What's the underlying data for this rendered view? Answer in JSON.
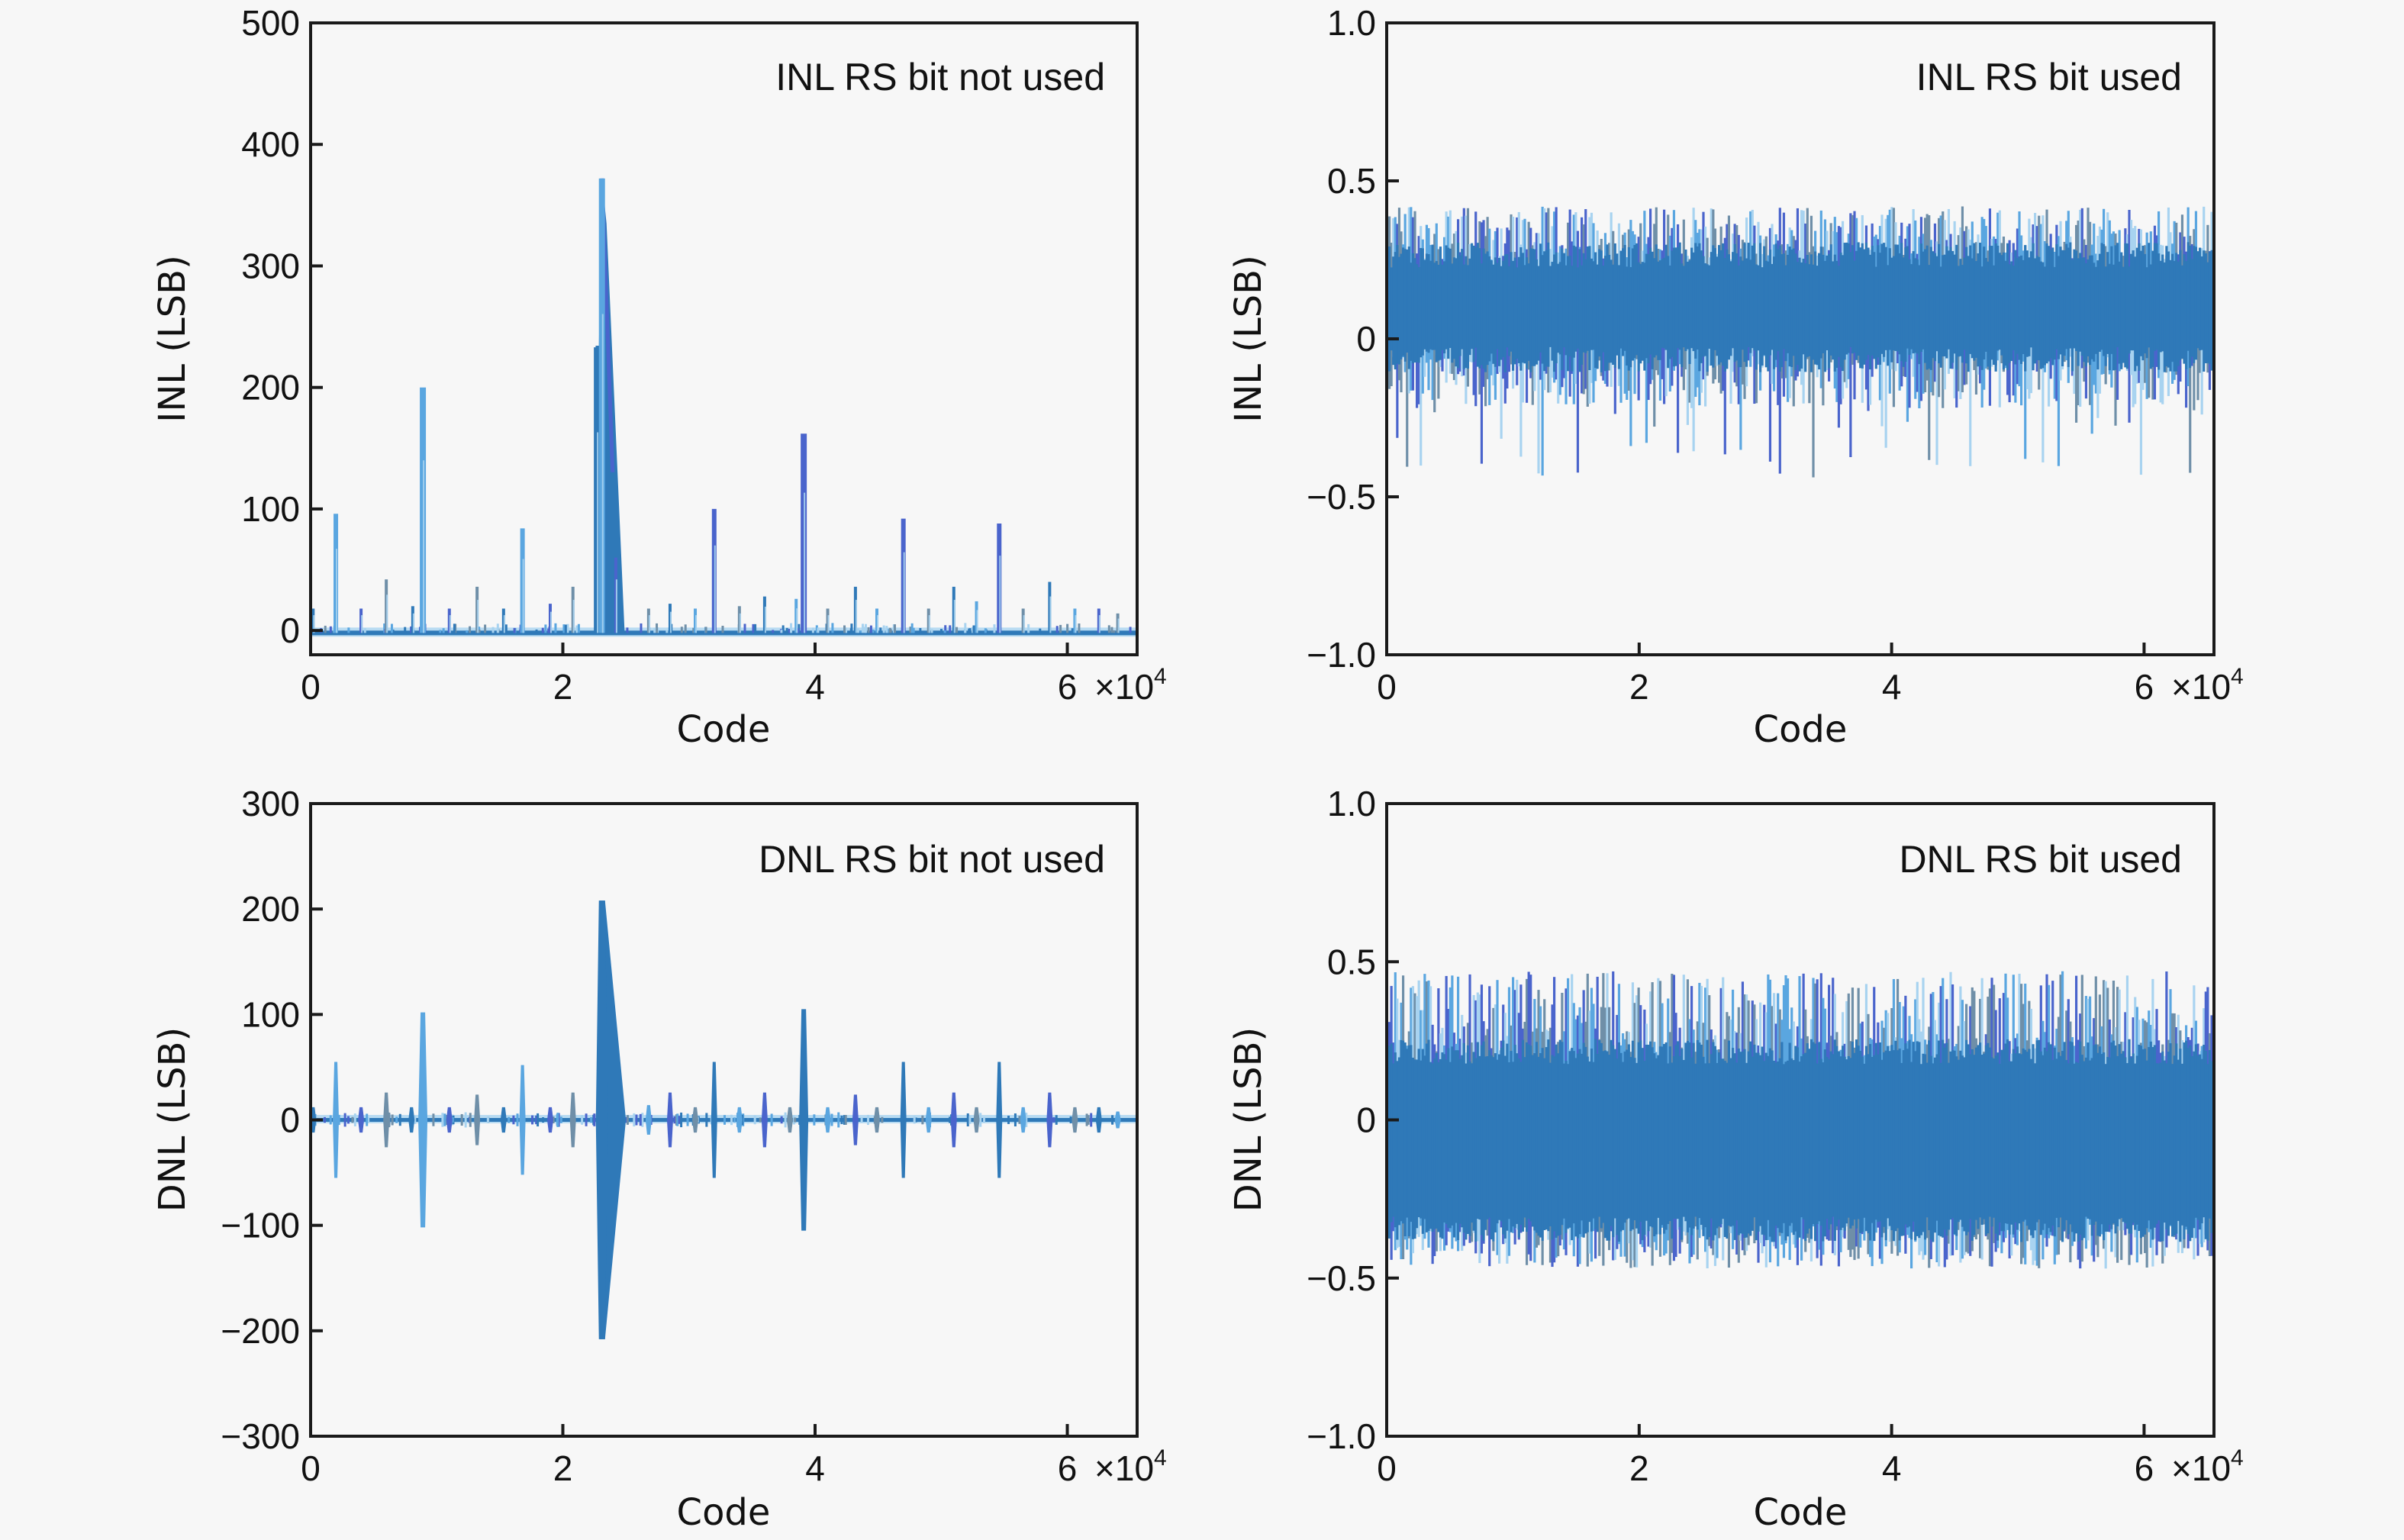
{
  "chart_data": [
    {
      "id": "inl_not_used",
      "type": "line",
      "annotation": "INL RS bit not used",
      "xlabel": "Code",
      "ylabel": "INL (LSB)",
      "xlim": [
        0,
        65536
      ],
      "ylim": [
        -20,
        500
      ],
      "xticks": [
        0,
        20000,
        40000,
        60000
      ],
      "xtick_labels": [
        "0",
        "2",
        "4",
        "6"
      ],
      "x_multiplier_label": "×10",
      "x_multiplier_exp": "4",
      "yticks": [
        0,
        100,
        200,
        300,
        400,
        500
      ],
      "ytick_labels": [
        "0",
        "100",
        "200",
        "300",
        "400",
        "500"
      ],
      "baseline": -2,
      "spikes": [
        {
          "x": 200,
          "y": 18
        },
        {
          "x": 2000,
          "y": 96
        },
        {
          "x": 4000,
          "y": 18
        },
        {
          "x": 6000,
          "y": 42
        },
        {
          "x": 8100,
          "y": 20
        },
        {
          "x": 8900,
          "y": 200
        },
        {
          "x": 11000,
          "y": 18
        },
        {
          "x": 13200,
          "y": 36
        },
        {
          "x": 15300,
          "y": 18
        },
        {
          "x": 16800,
          "y": 84
        },
        {
          "x": 19000,
          "y": 22
        },
        {
          "x": 20800,
          "y": 36
        },
        {
          "x": 22700,
          "y": 233
        },
        {
          "x": 23100,
          "y": 372
        },
        {
          "x": 24200,
          "y": 60
        },
        {
          "x": 26800,
          "y": 18
        },
        {
          "x": 28500,
          "y": 22
        },
        {
          "x": 30500,
          "y": 18
        },
        {
          "x": 32000,
          "y": 100
        },
        {
          "x": 34000,
          "y": 20
        },
        {
          "x": 36000,
          "y": 28
        },
        {
          "x": 38500,
          "y": 26
        },
        {
          "x": 39100,
          "y": 162
        },
        {
          "x": 41000,
          "y": 18
        },
        {
          "x": 43200,
          "y": 36
        },
        {
          "x": 44900,
          "y": 18
        },
        {
          "x": 47000,
          "y": 92
        },
        {
          "x": 49000,
          "y": 18
        },
        {
          "x": 51000,
          "y": 36
        },
        {
          "x": 52800,
          "y": 24
        },
        {
          "x": 54600,
          "y": 88
        },
        {
          "x": 56500,
          "y": 18
        },
        {
          "x": 58600,
          "y": 40
        },
        {
          "x": 60600,
          "y": 18
        },
        {
          "x": 62500,
          "y": 18
        },
        {
          "x": 64000,
          "y": 14
        }
      ],
      "wide_peaks": [
        {
          "x_start": 22600,
          "x_end": 24900,
          "peak_x": 23100,
          "peak_y": 372
        }
      ]
    },
    {
      "id": "inl_used",
      "type": "line",
      "annotation": "INL RS bit used",
      "xlabel": "Code",
      "ylabel": "INL (LSB)",
      "xlim": [
        0,
        65536
      ],
      "ylim": [
        -1.0,
        1.0
      ],
      "xticks": [
        0,
        20000,
        40000,
        60000
      ],
      "xtick_labels": [
        "0",
        "2",
        "4",
        "6"
      ],
      "x_multiplier_label": "×10",
      "x_multiplier_exp": "4",
      "yticks": [
        -1.0,
        -0.5,
        0,
        0.5,
        1.0
      ],
      "ytick_labels": [
        "−1.0",
        "−0.5",
        "0",
        "0.5",
        "1.0"
      ],
      "noise_band": {
        "core_min": -0.05,
        "core_max": 0.25,
        "max": 0.42,
        "min": -0.45,
        "typical_min": -0.22
      }
    },
    {
      "id": "dnl_not_used",
      "type": "line",
      "annotation": "DNL RS bit not used",
      "xlabel": "Code",
      "ylabel": "DNL (LSB)",
      "xlim": [
        0,
        65536
      ],
      "ylim": [
        -300,
        300
      ],
      "xticks": [
        0,
        20000,
        40000,
        60000
      ],
      "xtick_labels": [
        "0",
        "2",
        "4",
        "6"
      ],
      "x_multiplier_label": "×10",
      "x_multiplier_exp": "4",
      "yticks": [
        -300,
        -200,
        -100,
        0,
        100,
        200,
        300
      ],
      "ytick_labels": [
        "−300",
        "−200",
        "−100",
        "0",
        "100",
        "200",
        "300"
      ],
      "spikes": [
        {
          "x": 200,
          "y": 12
        },
        {
          "x": 2000,
          "y": 55
        },
        {
          "x": 4000,
          "y": 12
        },
        {
          "x": 6000,
          "y": 26
        },
        {
          "x": 8000,
          "y": 12
        },
        {
          "x": 8900,
          "y": 102
        },
        {
          "x": 11000,
          "y": 12
        },
        {
          "x": 13200,
          "y": 24
        },
        {
          "x": 15300,
          "y": 12
        },
        {
          "x": 16800,
          "y": 52
        },
        {
          "x": 19000,
          "y": 12
        },
        {
          "x": 20800,
          "y": 26
        },
        {
          "x": 23100,
          "y": 208
        },
        {
          "x": 26800,
          "y": 14
        },
        {
          "x": 28500,
          "y": 26
        },
        {
          "x": 30500,
          "y": 12
        },
        {
          "x": 32000,
          "y": 55
        },
        {
          "x": 34000,
          "y": 12
        },
        {
          "x": 36000,
          "y": 26
        },
        {
          "x": 38000,
          "y": 12
        },
        {
          "x": 39100,
          "y": 105
        },
        {
          "x": 41000,
          "y": 12
        },
        {
          "x": 43200,
          "y": 24
        },
        {
          "x": 44900,
          "y": 12
        },
        {
          "x": 47000,
          "y": 55
        },
        {
          "x": 49000,
          "y": 12
        },
        {
          "x": 51000,
          "y": 26
        },
        {
          "x": 52800,
          "y": 12
        },
        {
          "x": 54600,
          "y": 55
        },
        {
          "x": 56500,
          "y": 12
        },
        {
          "x": 58600,
          "y": 26
        },
        {
          "x": 60600,
          "y": 12
        },
        {
          "x": 62500,
          "y": 12
        },
        {
          "x": 64000,
          "y": 8
        }
      ],
      "wide_peaks": [
        {
          "x_start": 22800,
          "x_end": 25000,
          "peak_x": 23100,
          "peak_y": 208
        }
      ]
    },
    {
      "id": "dnl_used",
      "type": "line",
      "annotation": "DNL RS bit used",
      "xlabel": "Code",
      "ylabel": "DNL (LSB)",
      "xlim": [
        0,
        65536
      ],
      "ylim": [
        -1.0,
        1.0
      ],
      "xticks": [
        0,
        20000,
        40000,
        60000
      ],
      "xtick_labels": [
        "0",
        "2",
        "4",
        "6"
      ],
      "x_multiplier_label": "×10",
      "x_multiplier_exp": "4",
      "yticks": [
        -1.0,
        -0.5,
        0,
        0.5,
        1.0
      ],
      "ytick_labels": [
        "−1.0",
        "−0.5",
        "0",
        "0.5",
        "1.0"
      ],
      "noise_band": {
        "core_min": -0.33,
        "core_max": 0.2,
        "max": 0.47,
        "min": -0.47,
        "typical_min": -0.4
      }
    }
  ],
  "colors": {
    "trace_main": "#2f79b8",
    "trace_light": "#5aa6e0",
    "trace_pale": "#a8d3f0",
    "trace_violet": "#4a64cc",
    "trace_gray": "#6f8fa8",
    "axis": "#1a1a1a",
    "background": "#f7f7f7"
  }
}
